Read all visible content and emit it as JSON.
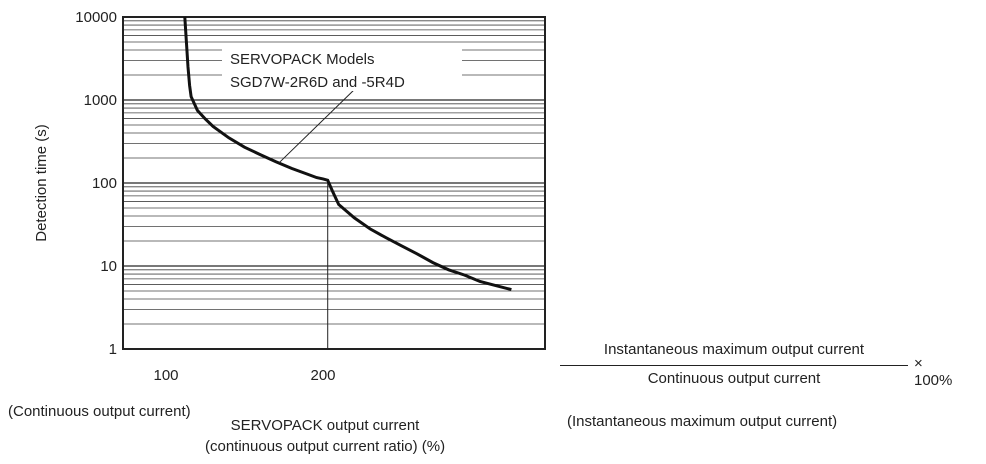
{
  "chart_data": {
    "type": "line",
    "ylabel": "Detection time (s)",
    "xlabel": "SERVOPACK output current",
    "xlabel_line2": "(continuous output current ratio) (%)",
    "y_scale": "log",
    "ylim": [
      1,
      10000
    ],
    "xlim": [
      100,
      310
    ],
    "y_ticks": [
      "10000",
      "1000",
      "100",
      "10",
      "1"
    ],
    "x_ticks": [
      "100",
      "200"
    ],
    "grid": true,
    "series": [
      {
        "name": "SERVOPACK Models SGD7W-2R6D and -5R4D",
        "points": [
          [
            112,
            10000
          ],
          [
            113,
            5000
          ],
          [
            114,
            2500
          ],
          [
            115,
            1500
          ],
          [
            116,
            1100
          ],
          [
            120,
            750
          ],
          [
            125,
            590
          ],
          [
            130,
            480
          ],
          [
            140,
            350
          ],
          [
            150,
            270
          ],
          [
            160,
            220
          ],
          [
            170,
            180
          ],
          [
            180,
            150
          ],
          [
            190,
            128
          ],
          [
            196,
            116
          ],
          [
            200,
            112
          ],
          [
            203,
            108
          ],
          [
            206,
            80
          ],
          [
            210,
            55
          ],
          [
            220,
            38
          ],
          [
            230,
            28
          ],
          [
            240,
            22
          ],
          [
            250,
            17.5
          ],
          [
            260,
            14
          ],
          [
            270,
            11
          ],
          [
            280,
            9
          ],
          [
            290,
            7.8
          ],
          [
            300,
            6.5
          ],
          [
            310,
            5.8
          ],
          [
            320,
            5.2
          ]
        ]
      }
    ],
    "annotation": {
      "line1": "SERVOPACK Models",
      "line2": "SGD7W-2R6D and -5R4D"
    }
  },
  "below_labels": {
    "left": "(Continuous output current)",
    "right": "(Instantaneous maximum output current)"
  },
  "fraction": {
    "numerator": "Instantaneous maximum output current",
    "denominator": "Continuous output current",
    "multiplier": "× 100%"
  }
}
